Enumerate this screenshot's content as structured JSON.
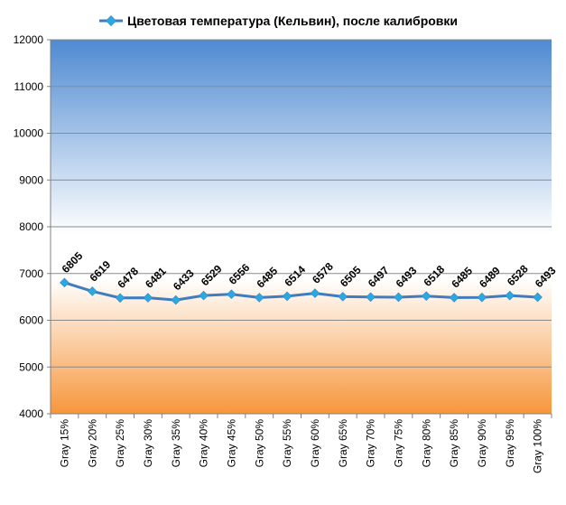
{
  "chart_data": {
    "type": "line",
    "categories": [
      "Gray 15%",
      "Gray 20%",
      "Gray 25%",
      "Gray 30%",
      "Gray 35%",
      "Gray 40%",
      "Gray 45%",
      "Gray 50%",
      "Gray 55%",
      "Gray 60%",
      "Gray 65%",
      "Gray 70%",
      "Gray 75%",
      "Gray 80%",
      "Gray 85%",
      "Gray 90%",
      "Gray 95%",
      "Gray 100%"
    ],
    "series": [
      {
        "name": "Цветовая температура (Кельвин), после калибровки",
        "values": [
          6805,
          6619,
          6478,
          6481,
          6433,
          6529,
          6556,
          6485,
          6514,
          6578,
          6505,
          6497,
          6493,
          6518,
          6485,
          6489,
          6528,
          6493
        ],
        "color": "#3f7dc0",
        "marker_color": "#2aa8e0"
      }
    ],
    "yticks": [
      4000,
      5000,
      6000,
      7000,
      8000,
      9000,
      10000,
      11000,
      12000
    ],
    "ylim": [
      4000,
      12000
    ],
    "grid": true,
    "legend_position": "top",
    "background": {
      "top_color": "#4f8ad2",
      "middle_color": "#ffffff",
      "bottom_color": "#f7963c"
    }
  }
}
